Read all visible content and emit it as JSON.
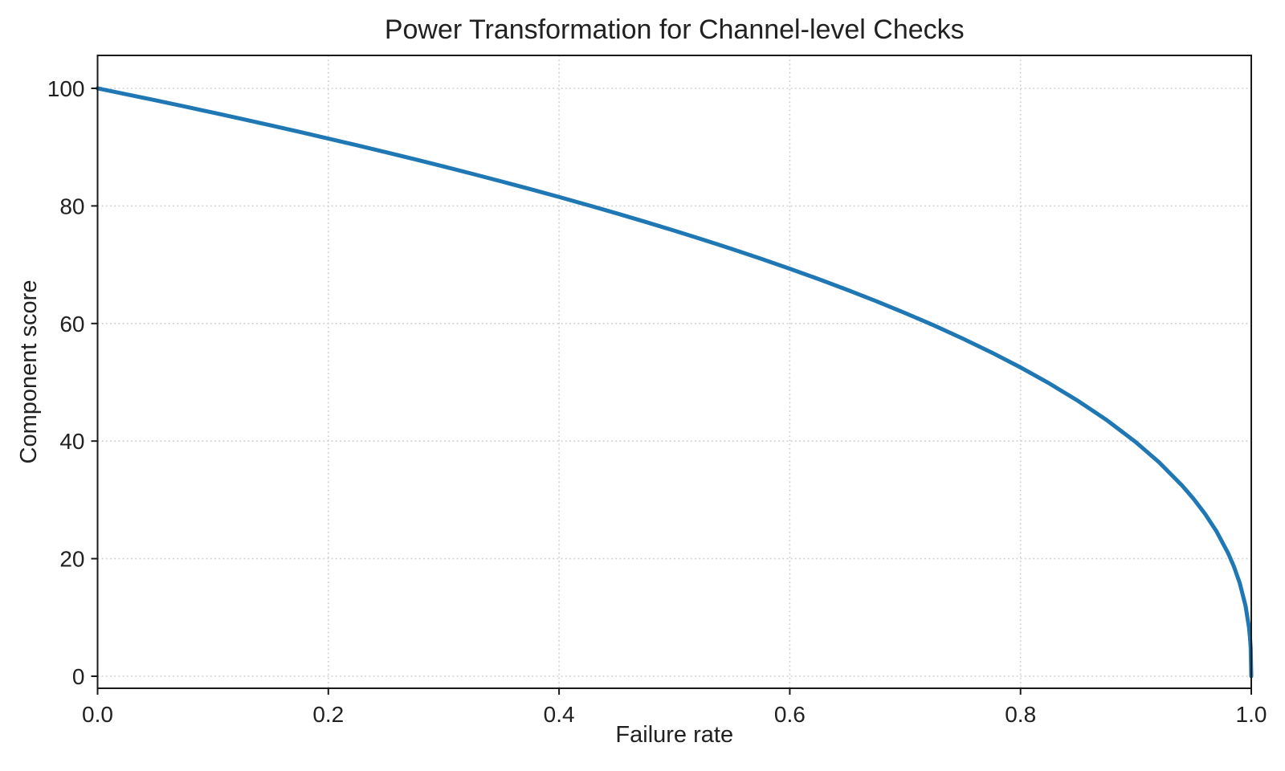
{
  "page": {
    "background": "#ffffff"
  },
  "chart_data": {
    "type": "line",
    "title": "Power Transformation for Channel-level Checks",
    "xlabel": "Failure rate",
    "ylabel": "Component score",
    "xlim": [
      0.0,
      1.0
    ],
    "ylim": [
      -2.05,
      105.6
    ],
    "x_ticks": [
      0.0,
      0.2,
      0.4,
      0.6,
      0.8,
      1.0
    ],
    "x_tick_labels": [
      "0.0",
      "0.2",
      "0.4",
      "0.6",
      "0.8",
      "1.0"
    ],
    "y_ticks": [
      0,
      20,
      40,
      60,
      80,
      100
    ],
    "y_tick_labels": [
      "0",
      "20",
      "40",
      "60",
      "80",
      "100"
    ],
    "grid": true,
    "grid_style": "dotted",
    "legend": false,
    "series": [
      {
        "name": "component-score-curve",
        "color": "#1f77b4",
        "line_width": 5,
        "points": [
          [
            0.0,
            100.0
          ],
          [
            0.025,
            98.99
          ],
          [
            0.05,
            97.97
          ],
          [
            0.075,
            96.93
          ],
          [
            0.1,
            95.87
          ],
          [
            0.125,
            94.8
          ],
          [
            0.15,
            93.71
          ],
          [
            0.175,
            92.59
          ],
          [
            0.2,
            91.46
          ],
          [
            0.225,
            90.31
          ],
          [
            0.25,
            89.13
          ],
          [
            0.275,
            87.93
          ],
          [
            0.3,
            86.7
          ],
          [
            0.325,
            85.45
          ],
          [
            0.35,
            84.17
          ],
          [
            0.375,
            82.86
          ],
          [
            0.4,
            81.52
          ],
          [
            0.425,
            80.14
          ],
          [
            0.45,
            78.73
          ],
          [
            0.475,
            77.28
          ],
          [
            0.5,
            75.79
          ],
          [
            0.525,
            74.25
          ],
          [
            0.55,
            72.66
          ],
          [
            0.575,
            71.02
          ],
          [
            0.6,
            69.31
          ],
          [
            0.625,
            67.55
          ],
          [
            0.65,
            65.71
          ],
          [
            0.675,
            63.79
          ],
          [
            0.7,
            61.78
          ],
          [
            0.725,
            59.67
          ],
          [
            0.75,
            57.43
          ],
          [
            0.775,
            55.06
          ],
          [
            0.8,
            52.53
          ],
          [
            0.825,
            49.8
          ],
          [
            0.85,
            46.82
          ],
          [
            0.875,
            43.53
          ],
          [
            0.9,
            39.81
          ],
          [
            0.92,
            36.41
          ],
          [
            0.94,
            32.45
          ],
          [
            0.95,
            30.17
          ],
          [
            0.96,
            27.6
          ],
          [
            0.97,
            24.6
          ],
          [
            0.98,
            20.91
          ],
          [
            0.985,
            18.64
          ],
          [
            0.99,
            15.85
          ],
          [
            0.995,
            12.01
          ],
          [
            0.998,
            8.33
          ],
          [
            0.999,
            6.31
          ],
          [
            0.9995,
            4.78
          ],
          [
            1.0,
            0.0
          ]
        ]
      }
    ]
  },
  "colors": {
    "line": "#1f77b4",
    "grid": "#cfcfcf",
    "spine": "#1a1a1a",
    "text": "#212121",
    "background": "#ffffff"
  }
}
